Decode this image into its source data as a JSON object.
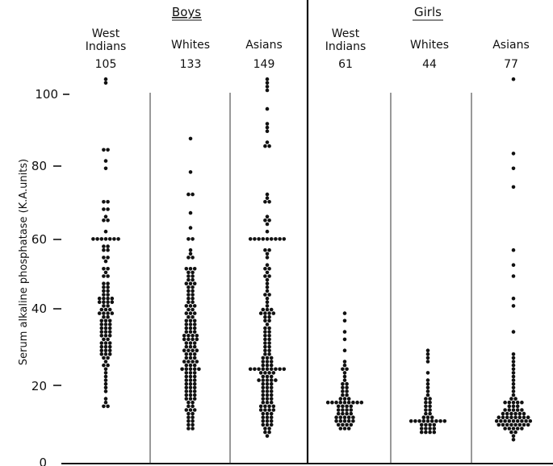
{
  "chart_data": {
    "type": "scatter",
    "title": "",
    "xlabel": "",
    "ylabel": "Serum alkaline phosphatase (K.A.units)",
    "ylim": [
      0,
      100
    ],
    "yticks": [
      "0",
      "20",
      "40",
      "60",
      "80",
      "100"
    ],
    "grid": false,
    "groups": [
      {
        "label": "Boys",
        "columns": [
          0,
          1,
          2
        ]
      },
      {
        "label": "Girls",
        "columns": [
          3,
          4,
          5
        ]
      }
    ],
    "columns": [
      {
        "label": "West Indians",
        "n": "105",
        "values": [
          103,
          102,
          84,
          84,
          81,
          79,
          70,
          70,
          68,
          68,
          66,
          65,
          65,
          62,
          60,
          60,
          60,
          60,
          60,
          60,
          60,
          58,
          58,
          57,
          57,
          55,
          55,
          54,
          52,
          52,
          51,
          50,
          50,
          48,
          48,
          47,
          47,
          46,
          46,
          45,
          45,
          44,
          44,
          44,
          44,
          43,
          43,
          43,
          43,
          42,
          42,
          41,
          41,
          41,
          40,
          40,
          40,
          40,
          39,
          39,
          38,
          38,
          38,
          37,
          37,
          37,
          36,
          36,
          36,
          35,
          35,
          35,
          34,
          34,
          34,
          33,
          33,
          32,
          32,
          32,
          31,
          31,
          31,
          30,
          30,
          30,
          29,
          29,
          29,
          28,
          28,
          27,
          26,
          26,
          25,
          24,
          23,
          22,
          21,
          20,
          19,
          17,
          16,
          15,
          15
        ]
      },
      {
        "label": "Whites",
        "n": "133",
        "values": [
          87,
          78,
          72,
          72,
          67,
          63,
          60,
          60,
          57,
          56,
          55,
          55,
          52,
          52,
          52,
          51,
          51,
          50,
          50,
          49,
          49,
          48,
          48,
          48,
          47,
          47,
          46,
          46,
          45,
          45,
          44,
          44,
          43,
          43,
          42,
          42,
          42,
          41,
          41,
          40,
          40,
          40,
          39,
          39,
          38,
          38,
          38,
          37,
          37,
          37,
          36,
          36,
          36,
          35,
          35,
          35,
          34,
          34,
          34,
          34,
          33,
          33,
          33,
          33,
          32,
          32,
          32,
          31,
          31,
          31,
          30,
          30,
          30,
          30,
          29,
          29,
          29,
          28,
          28,
          28,
          27,
          27,
          27,
          27,
          26,
          26,
          26,
          25,
          25,
          25,
          25,
          25,
          24,
          24,
          24,
          23,
          23,
          23,
          22,
          22,
          22,
          21,
          21,
          21,
          20,
          20,
          20,
          19,
          19,
          19,
          18,
          18,
          18,
          17,
          17,
          17,
          16,
          16,
          15,
          15,
          14,
          14,
          14,
          13,
          13,
          12,
          12,
          11,
          11,
          10,
          10,
          9,
          9
        ]
      },
      {
        "label": "Asians",
        "n": "149",
        "values": [
          103,
          102,
          101,
          100,
          95,
          91,
          90,
          89,
          86,
          85,
          85,
          72,
          71,
          70,
          70,
          66,
          65,
          65,
          64,
          62,
          60,
          60,
          60,
          60,
          60,
          60,
          60,
          60,
          60,
          57,
          57,
          56,
          55,
          53,
          52,
          52,
          51,
          50,
          50,
          49,
          48,
          47,
          46,
          45,
          45,
          44,
          43,
          42,
          41,
          41,
          41,
          40,
          40,
          40,
          40,
          39,
          39,
          38,
          38,
          37,
          36,
          36,
          35,
          35,
          34,
          34,
          33,
          33,
          32,
          32,
          31,
          31,
          30,
          30,
          29,
          29,
          28,
          28,
          28,
          27,
          27,
          27,
          26,
          26,
          26,
          25,
          25,
          25,
          25,
          25,
          25,
          25,
          25,
          25,
          24,
          24,
          24,
          24,
          23,
          23,
          23,
          22,
          22,
          22,
          22,
          22,
          21,
          21,
          21,
          20,
          20,
          20,
          19,
          19,
          19,
          18,
          18,
          18,
          17,
          17,
          17,
          16,
          16,
          16,
          15,
          15,
          15,
          15,
          14,
          14,
          14,
          14,
          13,
          13,
          13,
          12,
          12,
          12,
          11,
          11,
          11,
          10,
          10,
          10,
          9,
          9,
          8,
          8,
          7
        ]
      },
      {
        "label": "West Indians",
        "n": "61",
        "values": [
          40,
          38,
          35,
          33,
          30,
          27,
          26,
          25,
          25,
          24,
          23,
          22,
          21,
          21,
          20,
          20,
          19,
          19,
          18,
          18,
          17,
          17,
          17,
          16,
          16,
          16,
          16,
          16,
          16,
          16,
          16,
          16,
          15,
          15,
          15,
          15,
          14,
          14,
          14,
          14,
          13,
          13,
          13,
          13,
          12,
          12,
          12,
          12,
          12,
          11,
          11,
          11,
          11,
          11,
          10,
          10,
          10,
          10,
          9,
          9,
          9
        ]
      },
      {
        "label": "Whites",
        "n": "44",
        "values": [
          30,
          29,
          28,
          27,
          24,
          22,
          21,
          20,
          19,
          18,
          17,
          17,
          16,
          16,
          15,
          15,
          14,
          14,
          13,
          13,
          12,
          12,
          12,
          11,
          11,
          11,
          11,
          11,
          11,
          11,
          11,
          11,
          10,
          10,
          10,
          10,
          9,
          9,
          9,
          9,
          8,
          8,
          8,
          8
        ]
      },
      {
        "label": "Asians",
        "n": "77",
        "values": [
          103,
          83,
          79,
          74,
          57,
          53,
          50,
          44,
          42,
          35,
          29,
          28,
          27,
          26,
          25,
          24,
          23,
          22,
          21,
          20,
          19,
          18,
          17,
          17,
          16,
          16,
          16,
          16,
          16,
          15,
          15,
          15,
          14,
          14,
          14,
          14,
          14,
          13,
          13,
          13,
          13,
          13,
          13,
          12,
          12,
          12,
          12,
          12,
          12,
          12,
          12,
          11,
          11,
          11,
          11,
          11,
          11,
          11,
          11,
          11,
          10,
          10,
          10,
          10,
          10,
          10,
          10,
          10,
          9,
          9,
          9,
          9,
          9,
          8,
          8,
          7,
          6
        ]
      }
    ]
  }
}
